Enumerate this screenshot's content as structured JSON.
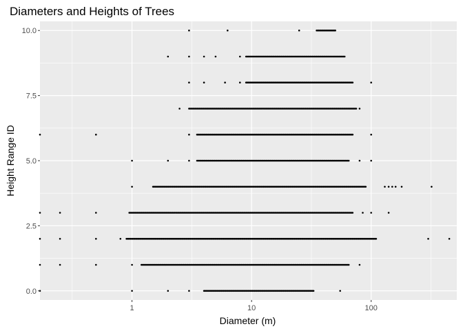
{
  "chart_data": {
    "type": "scatter",
    "title": "Diameters and Heights of Trees",
    "xlabel": "Diameter (m)",
    "ylabel": "Height Range ID",
    "x_scale": "log10",
    "xlim": [
      0.17,
      520
    ],
    "ylim": [
      -0.35,
      10.35
    ],
    "x_ticks": [
      {
        "value": 1,
        "label": "1"
      },
      {
        "value": 10,
        "label": "10"
      },
      {
        "value": 100,
        "label": "100"
      }
    ],
    "y_ticks": [
      {
        "value": 0,
        "label": "0.0"
      },
      {
        "value": 2.5,
        "label": "2.5"
      },
      {
        "value": 5,
        "label": "5.0"
      },
      {
        "value": 7.5,
        "label": "7.5"
      },
      {
        "value": 10,
        "label": "10.0"
      }
    ],
    "grid": true,
    "legend": "none",
    "colors": {
      "panel_background": "#ebebeb",
      "grid_major": "#ffffff",
      "point": "#000000"
    },
    "rows": [
      {
        "y": 0,
        "isolated": [
          0.17,
          1,
          2,
          3,
          55
        ],
        "dense": [
          [
            4,
            33
          ]
        ]
      },
      {
        "y": 1,
        "isolated": [
          0.17,
          0.25,
          0.5,
          1,
          80
        ],
        "dense": [
          [
            1.2,
            65
          ]
        ]
      },
      {
        "y": 2,
        "isolated": [
          0.17,
          0.25,
          0.5,
          0.8,
          300,
          450
        ],
        "dense": [
          [
            0.9,
            110
          ]
        ]
      },
      {
        "y": 3,
        "isolated": [
          0.17,
          0.25,
          0.5,
          85,
          100,
          140
        ],
        "dense": [
          [
            0.95,
            70
          ]
        ]
      },
      {
        "y": 4,
        "isolated": [
          1,
          130,
          140,
          150,
          160,
          180,
          320
        ],
        "dense": [
          [
            1.5,
            90
          ]
        ]
      },
      {
        "y": 5,
        "isolated": [
          1,
          2,
          3,
          80,
          100
        ],
        "dense": [
          [
            3.5,
            65
          ]
        ]
      },
      {
        "y": 6,
        "isolated": [
          0.17,
          0.5,
          3,
          100
        ],
        "dense": [
          [
            3.5,
            70
          ]
        ]
      },
      {
        "y": 7,
        "isolated": [
          2.5,
          80
        ],
        "dense": [
          [
            3,
            75
          ]
        ]
      },
      {
        "y": 8,
        "isolated": [
          3,
          4,
          6,
          8,
          100
        ],
        "dense": [
          [
            9,
            70
          ]
        ]
      },
      {
        "y": 9,
        "isolated": [
          2,
          3,
          4,
          5,
          8
        ],
        "dense": [
          [
            9,
            60
          ]
        ]
      },
      {
        "y": 10,
        "isolated": [
          3,
          6.3,
          25,
          50
        ],
        "dense": [
          [
            35,
            50
          ]
        ]
      }
    ]
  }
}
